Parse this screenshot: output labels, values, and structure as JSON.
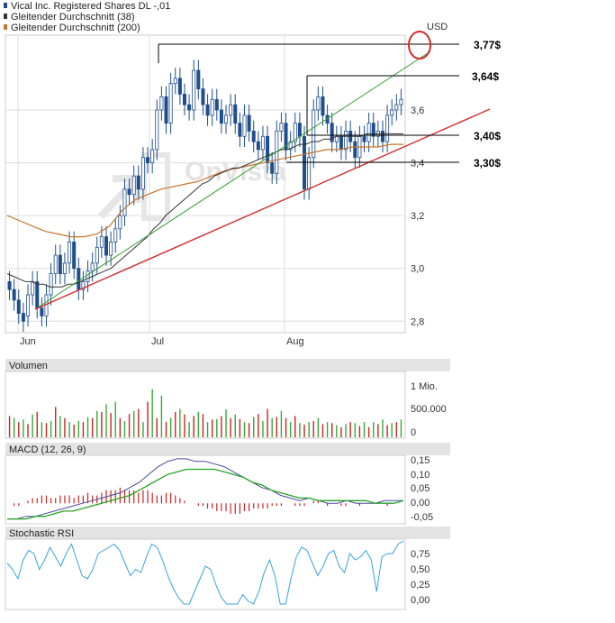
{
  "legend": {
    "items": [
      {
        "label": "Vical Inc. Registered Shares DL -,01",
        "color": "#1f4e8c"
      },
      {
        "label": "Gleitender Durchschnitt (38)",
        "color": "#333333"
      },
      {
        "label": "Gleitender Durchschnitt (200)",
        "color": "#c8742c"
      }
    ]
  },
  "watermark": "OnVista",
  "currency": "USD",
  "annotations": [
    "3,77$",
    "3,64$",
    "3,40$",
    "3,30$"
  ],
  "panels": {
    "volume": {
      "title": "Volumen",
      "ticks": [
        "1 Mio.",
        "500.000",
        "0"
      ]
    },
    "macd": {
      "title": "MACD (12, 26, 9)",
      "ticks": [
        "0,15",
        "0,10",
        "0,05",
        "0,00",
        "-0,05"
      ]
    },
    "rsi": {
      "title": "Stochastic RSI",
      "ticks": [
        "0,75",
        "0,50",
        "0,25",
        "0,00"
      ]
    }
  },
  "chart_data": {
    "type": "candlestick",
    "x_axis_labels": [
      "Jun",
      "Jul",
      "Aug"
    ],
    "y_ticks": [
      "2,8",
      "3,0",
      "3,2",
      "3,4",
      "3,6"
    ],
    "ylim": [
      2.76,
      3.88
    ],
    "grid": true,
    "price_series": {
      "name": "Vical Inc. Registered Shares DL -,01",
      "close": [
        2.92,
        2.88,
        2.83,
        2.8,
        2.9,
        2.95,
        2.85,
        2.82,
        2.9,
        2.98,
        3.05,
        2.98,
        3.02,
        3.1,
        3.0,
        2.92,
        2.95,
        2.99,
        3.02,
        3.08,
        3.12,
        3.05,
        3.1,
        3.15,
        3.2,
        3.3,
        3.28,
        3.35,
        3.3,
        3.42,
        3.4,
        3.45,
        3.6,
        3.65,
        3.55,
        3.7,
        3.72,
        3.66,
        3.62,
        3.6,
        3.75,
        3.68,
        3.62,
        3.58,
        3.64,
        3.6,
        3.55,
        3.58,
        3.62,
        3.55,
        3.5,
        3.58,
        3.52,
        3.48,
        3.45,
        3.5,
        3.4,
        3.36,
        3.52,
        3.55,
        3.45,
        3.48,
        3.55,
        3.5,
        3.3,
        3.42,
        3.6,
        3.65,
        3.58,
        3.55,
        3.48,
        3.5,
        3.45,
        3.52,
        3.48,
        3.42,
        3.5,
        3.48,
        3.55,
        3.5,
        3.52,
        3.48,
        3.58,
        3.6,
        3.62,
        3.64
      ],
      "open": [
        2.95,
        2.92,
        2.88,
        2.83,
        2.82,
        2.9,
        2.95,
        2.85,
        2.82,
        2.9,
        2.98,
        3.05,
        2.98,
        3.02,
        3.1,
        3.0,
        2.92,
        2.95,
        2.99,
        3.02,
        3.08,
        3.12,
        3.05,
        3.1,
        3.15,
        3.2,
        3.3,
        3.28,
        3.35,
        3.3,
        3.42,
        3.4,
        3.45,
        3.6,
        3.65,
        3.55,
        3.7,
        3.72,
        3.66,
        3.62,
        3.6,
        3.75,
        3.68,
        3.62,
        3.58,
        3.64,
        3.6,
        3.55,
        3.58,
        3.62,
        3.55,
        3.5,
        3.58,
        3.52,
        3.48,
        3.45,
        3.5,
        3.4,
        3.36,
        3.52,
        3.55,
        3.45,
        3.48,
        3.55,
        3.5,
        3.3,
        3.42,
        3.6,
        3.65,
        3.58,
        3.55,
        3.48,
        3.5,
        3.45,
        3.52,
        3.48,
        3.42,
        3.5,
        3.48,
        3.55,
        3.5,
        3.52,
        3.48,
        3.58,
        3.6,
        3.62
      ]
    },
    "ma38": [
      2.98,
      2.97,
      2.96,
      2.95,
      2.95,
      2.94,
      2.94,
      2.93,
      2.93,
      2.93,
      2.94,
      2.94,
      2.95,
      2.96,
      2.97,
      2.98,
      2.99,
      3.0,
      3.02,
      3.04,
      3.06,
      3.08,
      3.1,
      3.12,
      3.15,
      3.17,
      3.2,
      3.22,
      3.24,
      3.26,
      3.28,
      3.3,
      3.32,
      3.33,
      3.35,
      3.36,
      3.37,
      3.38,
      3.38,
      3.39,
      3.4,
      3.41,
      3.42,
      3.43,
      3.44,
      3.45,
      3.45,
      3.46,
      3.47,
      3.47,
      3.48,
      3.48,
      3.49,
      3.49,
      3.5,
      3.5,
      3.5,
      3.5,
      3.5,
      3.51,
      3.51,
      3.51,
      3.51,
      3.51,
      3.51,
      3.51
    ],
    "ma200": [
      3.2,
      3.18,
      3.16,
      3.14,
      3.13,
      3.12,
      3.12,
      3.13,
      3.16,
      3.22,
      3.26,
      3.28,
      3.3,
      3.31,
      3.32,
      3.33,
      3.35,
      3.37,
      3.38,
      3.39,
      3.4,
      3.41,
      3.42,
      3.43,
      3.44,
      3.45,
      3.45,
      3.46,
      3.46,
      3.46,
      3.47,
      3.47
    ],
    "volume": [
      420,
      380,
      300,
      350,
      260,
      450,
      500,
      300,
      280,
      320,
      600,
      420,
      380,
      300,
      250,
      320,
      300,
      400,
      380,
      520,
      500,
      650,
      480,
      700,
      380,
      320,
      460,
      520,
      560,
      300,
      700,
      950,
      380,
      820,
      300,
      380,
      500,
      560,
      450,
      300,
      420,
      500,
      460,
      300,
      350,
      360,
      420,
      550,
      380,
      450,
      360,
      300,
      280,
      400,
      460,
      320,
      560,
      380,
      400,
      520,
      380,
      300,
      420,
      280,
      250,
      300,
      320,
      380,
      260,
      300,
      280,
      240,
      200,
      260,
      300,
      280,
      220,
      300,
      200,
      300,
      260,
      350,
      240,
      280,
      300,
      350
    ],
    "macd_hist": [
      0.0,
      -0.01,
      -0.01,
      0.0,
      0.01,
      0.02,
      0.02,
      0.03,
      0.03,
      0.02,
      0.02,
      0.03,
      0.03,
      0.03,
      0.02,
      0.03,
      0.03,
      0.04,
      0.03,
      0.03,
      0.04,
      0.05,
      0.05,
      0.05,
      0.06,
      0.05,
      0.05,
      0.05,
      0.04,
      0.05,
      0.05,
      0.04,
      0.03,
      0.03,
      0.04,
      0.04,
      0.03,
      0.02,
      0.01,
      0.0,
      0.0,
      -0.01,
      -0.01,
      -0.02,
      -0.02,
      -0.03,
      -0.03,
      -0.03,
      -0.04,
      -0.04,
      -0.04,
      -0.03,
      -0.03,
      -0.02,
      -0.02,
      -0.02,
      -0.02,
      -0.01,
      -0.01,
      -0.01,
      0.0,
      0.0,
      -0.01,
      -0.01,
      -0.01,
      0.0,
      0.01,
      0.01,
      0.0,
      -0.01,
      0.0,
      0.0,
      -0.01,
      -0.01,
      0.0,
      0.0,
      -0.01,
      0.0,
      0.0,
      0.0,
      0.0,
      0.0,
      -0.01,
      0.0,
      0.0,
      0.0
    ],
    "macd_line": [
      -0.06,
      -0.06,
      -0.05,
      -0.05,
      -0.04,
      -0.03,
      -0.02,
      -0.01,
      0.0,
      0.01,
      0.02,
      0.03,
      0.04,
      0.06,
      0.08,
      0.11,
      0.14,
      0.16,
      0.17,
      0.17,
      0.16,
      0.16,
      0.15,
      0.14,
      0.12,
      0.1,
      0.08,
      0.06,
      0.05,
      0.03,
      0.02,
      0.01,
      0.02,
      0.01,
      0.0,
      0.0,
      0.01,
      0.0,
      0.0,
      0.0,
      0.01,
      0.01,
      0.01
    ],
    "signal_line": [
      -0.06,
      -0.06,
      -0.06,
      -0.05,
      -0.05,
      -0.04,
      -0.03,
      -0.03,
      -0.02,
      -0.01,
      0.0,
      0.01,
      0.02,
      0.03,
      0.05,
      0.07,
      0.09,
      0.11,
      0.12,
      0.13,
      0.13,
      0.13,
      0.13,
      0.12,
      0.11,
      0.1,
      0.08,
      0.07,
      0.05,
      0.04,
      0.03,
      0.02,
      0.02,
      0.01,
      0.01,
      0.01,
      0.01,
      0.01,
      0.01,
      0.0,
      0.0,
      0.0,
      0.01
    ],
    "stoch_rsi": [
      0.65,
      0.55,
      0.4,
      0.7,
      0.85,
      0.8,
      0.55,
      0.7,
      0.9,
      0.75,
      0.6,
      0.8,
      0.95,
      0.7,
      0.45,
      0.4,
      0.55,
      0.8,
      0.85,
      0.9,
      0.95,
      0.85,
      0.65,
      0.45,
      0.55,
      0.5,
      0.75,
      0.95,
      0.9,
      0.7,
      0.45,
      0.25,
      0.1,
      0.0,
      0.0,
      0.2,
      0.4,
      0.6,
      0.55,
      0.3,
      0.1,
      0.0,
      0.0,
      0.0,
      0.15,
      0.05,
      0.0,
      0.2,
      0.5,
      0.7,
      0.45,
      0.0,
      0.0,
      0.4,
      0.75,
      0.9,
      0.85,
      0.65,
      0.45,
      0.6,
      0.8,
      0.85,
      0.6,
      0.5,
      0.8,
      0.7,
      0.75,
      0.85,
      0.7,
      0.2,
      0.75,
      0.8,
      0.8,
      0.95,
      1.0
    ]
  }
}
